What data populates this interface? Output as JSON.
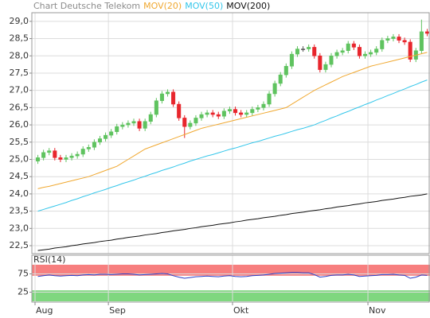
{
  "chart_data": [
    {
      "type": "candlestick",
      "title": "Chart Deutsche Telekom",
      "categories": [
        "Aug",
        null,
        null,
        null,
        null,
        null,
        null,
        null,
        null,
        null,
        null,
        null,
        null,
        "Sep",
        null,
        null,
        null,
        null,
        null,
        null,
        null,
        null,
        null,
        null,
        null,
        null,
        null,
        null,
        null,
        null,
        null,
        null,
        null,
        null,
        null,
        "Okt",
        null,
        null,
        null,
        null,
        null,
        null,
        null,
        null,
        null,
        null,
        null,
        null,
        null,
        null,
        null,
        null,
        null,
        null,
        null,
        null,
        null,
        null,
        null,
        "Nov",
        null,
        null,
        null,
        null,
        null,
        null,
        null,
        null,
        null,
        null
      ],
      "open": [
        24.95,
        25.05,
        25.2,
        25.25,
        25.05,
        25.0,
        25.05,
        25.1,
        25.15,
        25.3,
        25.35,
        25.5,
        25.6,
        25.7,
        25.8,
        25.95,
        26.0,
        26.05,
        26.1,
        25.9,
        26.1,
        26.3,
        26.7,
        26.9,
        26.95,
        26.6,
        26.2,
        25.95,
        26.05,
        26.2,
        26.3,
        26.35,
        26.3,
        26.25,
        26.4,
        26.45,
        26.35,
        26.3,
        26.35,
        26.45,
        26.5,
        26.6,
        26.9,
        27.2,
        27.45,
        27.7,
        28.05,
        28.2,
        28.2,
        28.25,
        28.0,
        27.6,
        27.75,
        28.0,
        28.1,
        28.15,
        28.35,
        28.25,
        28.0,
        28.05,
        28.1,
        28.2,
        28.45,
        28.5,
        28.55,
        28.45,
        28.4,
        27.9,
        28.15,
        28.7
      ],
      "high": [
        25.13,
        25.28,
        25.33,
        25.33,
        25.13,
        25.13,
        25.18,
        25.23,
        25.38,
        25.43,
        25.58,
        25.68,
        25.78,
        25.88,
        26.03,
        26.08,
        26.13,
        26.18,
        26.18,
        26.18,
        26.38,
        26.78,
        26.98,
        27.03,
        27.03,
        26.68,
        26.28,
        26.13,
        26.28,
        26.38,
        26.43,
        26.43,
        26.38,
        26.48,
        26.53,
        26.53,
        26.43,
        26.43,
        26.53,
        26.58,
        26.68,
        26.98,
        27.28,
        27.53,
        27.78,
        28.13,
        28.28,
        28.28,
        28.33,
        28.33,
        28.08,
        27.83,
        28.08,
        28.18,
        28.23,
        28.43,
        28.43,
        28.33,
        28.13,
        28.18,
        28.28,
        28.53,
        28.58,
        28.63,
        28.63,
        28.53,
        28.48,
        28.23,
        29.05,
        28.78
      ],
      "low": [
        24.87,
        24.97,
        25.12,
        24.97,
        24.92,
        24.92,
        24.97,
        25.02,
        25.07,
        25.22,
        25.27,
        25.42,
        25.52,
        25.62,
        25.72,
        25.87,
        25.92,
        25.97,
        25.82,
        25.82,
        26.02,
        26.22,
        26.62,
        26.82,
        26.52,
        26.12,
        25.62,
        25.87,
        25.97,
        26.12,
        26.22,
        26.22,
        26.17,
        26.17,
        26.32,
        26.27,
        26.22,
        26.22,
        26.27,
        26.37,
        26.42,
        26.52,
        26.82,
        27.12,
        27.37,
        27.62,
        27.97,
        28.12,
        28.12,
        27.92,
        27.52,
        27.52,
        27.67,
        27.92,
        28.02,
        28.07,
        28.17,
        27.92,
        27.92,
        27.97,
        28.02,
        28.12,
        28.37,
        28.42,
        28.37,
        28.32,
        27.82,
        27.82,
        28.07,
        28.57
      ],
      "close": [
        25.05,
        25.2,
        25.25,
        25.05,
        25.0,
        25.05,
        25.1,
        25.15,
        25.3,
        25.35,
        25.5,
        25.6,
        25.7,
        25.8,
        25.95,
        26.0,
        26.05,
        26.1,
        25.9,
        26.1,
        26.3,
        26.7,
        26.9,
        26.95,
        26.6,
        26.2,
        25.95,
        26.05,
        26.2,
        26.3,
        26.35,
        26.3,
        26.25,
        26.4,
        26.45,
        26.35,
        26.3,
        26.35,
        26.45,
        26.5,
        26.6,
        26.9,
        27.2,
        27.45,
        27.7,
        28.05,
        28.2,
        28.2,
        28.25,
        28.0,
        27.6,
        27.75,
        28.0,
        28.1,
        28.15,
        28.35,
        28.25,
        28.0,
        28.05,
        28.1,
        28.2,
        28.45,
        28.5,
        28.55,
        28.45,
        28.4,
        27.9,
        28.15,
        28.7,
        28.65
      ],
      "up_color": "#5fc35f",
      "down_color": "#e8262d",
      "flat_color": "#555555",
      "series": [
        {
          "name": "MOV(20)",
          "color": "#f0a830",
          "values": [
            24.15,
            24.19,
            24.22,
            24.26,
            24.3,
            24.34,
            24.38,
            24.42,
            24.46,
            24.5,
            24.56,
            24.62,
            24.68,
            24.74,
            24.8,
            24.9,
            25.0,
            25.1,
            25.2,
            25.3,
            25.36,
            25.42,
            25.48,
            25.54,
            25.6,
            25.66,
            25.72,
            25.78,
            25.84,
            25.9,
            25.94,
            25.98,
            26.02,
            26.06,
            26.1,
            26.14,
            26.18,
            26.22,
            26.26,
            26.3,
            26.34,
            26.38,
            26.42,
            26.46,
            26.5,
            26.6,
            26.7,
            26.8,
            26.9,
            27.0,
            27.08,
            27.16,
            27.24,
            27.32,
            27.4,
            27.46,
            27.52,
            27.58,
            27.64,
            27.7,
            27.74,
            27.78,
            27.82,
            27.86,
            27.9,
            27.94,
            27.98,
            28.02,
            28.06,
            28.1
          ]
        },
        {
          "name": "MOV(50)",
          "color": "#33c6ea",
          "values": [
            23.5,
            23.55,
            23.6,
            23.65,
            23.7,
            23.75,
            23.81,
            23.86,
            23.92,
            23.97,
            24.03,
            24.08,
            24.13,
            24.19,
            24.24,
            24.3,
            24.35,
            24.4,
            24.46,
            24.51,
            24.57,
            24.62,
            24.68,
            24.73,
            24.78,
            24.84,
            24.89,
            24.95,
            25.0,
            25.05,
            25.1,
            25.14,
            25.19,
            25.24,
            25.29,
            25.33,
            25.38,
            25.43,
            25.48,
            25.52,
            25.57,
            25.62,
            25.67,
            25.71,
            25.76,
            25.81,
            25.86,
            25.9,
            25.95,
            26.0,
            26.07,
            26.13,
            26.2,
            26.26,
            26.33,
            26.39,
            26.46,
            26.52,
            26.59,
            26.65,
            26.72,
            26.78,
            26.85,
            26.91,
            26.98,
            27.04,
            27.11,
            27.17,
            27.24,
            27.3
          ]
        },
        {
          "name": "MOV(200)",
          "color": "#111111",
          "values": [
            22.36,
            22.38,
            22.4,
            22.43,
            22.45,
            22.47,
            22.5,
            22.52,
            22.55,
            22.57,
            22.59,
            22.62,
            22.64,
            22.66,
            22.69,
            22.71,
            22.74,
            22.76,
            22.78,
            22.81,
            22.83,
            22.85,
            22.88,
            22.9,
            22.93,
            22.95,
            22.97,
            23.0,
            23.02,
            23.05,
            23.07,
            23.09,
            23.12,
            23.14,
            23.16,
            23.19,
            23.21,
            23.24,
            23.26,
            23.28,
            23.31,
            23.33,
            23.35,
            23.38,
            23.4,
            23.43,
            23.45,
            23.47,
            23.5,
            23.52,
            23.54,
            23.57,
            23.59,
            23.62,
            23.64,
            23.66,
            23.69,
            23.71,
            23.74,
            23.76,
            23.78,
            23.81,
            23.83,
            23.85,
            23.88,
            23.9,
            23.93,
            23.95,
            23.97,
            24.0
          ]
        }
      ],
      "ylim": [
        22.27,
        29.25
      ],
      "yticks": [
        {
          "value": 22.5,
          "label": "22,5"
        },
        {
          "value": 23,
          "label": "23,0"
        },
        {
          "value": 23.5,
          "label": "23,5"
        },
        {
          "value": 24,
          "label": "24,0"
        },
        {
          "value": 24.5,
          "label": "24,5"
        },
        {
          "value": 25,
          "label": "25,0"
        },
        {
          "value": 25.5,
          "label": "25,5"
        },
        {
          "value": 26,
          "label": "26,0"
        },
        {
          "value": 26.5,
          "label": "26,5"
        },
        {
          "value": 27,
          "label": "27,0"
        },
        {
          "value": 27.5,
          "label": "27,5"
        },
        {
          "value": 28,
          "label": "28,0"
        },
        {
          "value": 28.5,
          "label": "28,5"
        },
        {
          "value": 29,
          "label": "29,0"
        }
      ],
      "grid": true
    },
    {
      "type": "line",
      "series": [
        {
          "name": "RSI(14)",
          "color": "#2a3fc8",
          "values": [
            68,
            70,
            72,
            70,
            69,
            70,
            71,
            70,
            72,
            73,
            72,
            74,
            74,
            73,
            74,
            75,
            75,
            74,
            72,
            73,
            74,
            75,
            76,
            75,
            70,
            66,
            63,
            65,
            67,
            68,
            69,
            68,
            67,
            69,
            70,
            68,
            67,
            68,
            70,
            71,
            72,
            74,
            76,
            77,
            78,
            79,
            79,
            78,
            78,
            73,
            66,
            68,
            71,
            72,
            72,
            74,
            72,
            68,
            69,
            70,
            71,
            73,
            73,
            74,
            72,
            71,
            63,
            66,
            72,
            71
          ]
        }
      ],
      "ylim": [
        0,
        100
      ],
      "yticks": [
        25,
        75
      ],
      "bands": [
        {
          "from": 70,
          "to": 100,
          "color": "#f77f7f"
        },
        {
          "from": 0,
          "to": 30,
          "color": "#7fd77f"
        }
      ],
      "grid": true
    }
  ]
}
